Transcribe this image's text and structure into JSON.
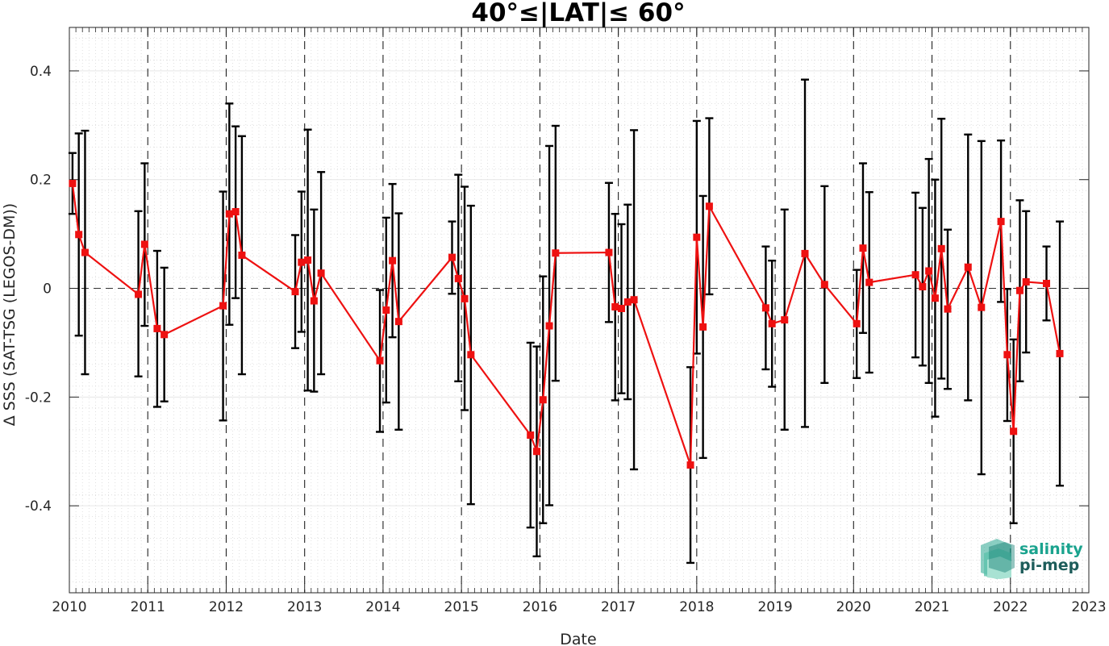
{
  "chart_data": {
    "type": "line",
    "title": "40°≤|LAT|≤ 60°",
    "xlabel": "Date",
    "ylabel": "Δ SSS (SAT-TSG (LEGOS-DM))",
    "xlim": [
      2010,
      2023
    ],
    "ylim": [
      -0.56,
      0.48
    ],
    "x_ticks": [
      "2010",
      "2011",
      "2012",
      "2013",
      "2014",
      "2015",
      "2016",
      "2017",
      "2018",
      "2019",
      "2020",
      "2021",
      "2022",
      "2023"
    ],
    "y_ticks": [
      "-0.4",
      "-0.2",
      "0",
      "0.2",
      "0.4"
    ],
    "grid": true,
    "minor_grid": true,
    "year_separators": "dashed",
    "zero_line": "dashed",
    "series": [
      {
        "color": "#ee1111",
        "marker": "square",
        "error_bar_color": "#000000",
        "points": [
          {
            "x": 2010.04,
            "y": 0.193,
            "lo": 0.137,
            "hi": 0.249
          },
          {
            "x": 2010.12,
            "y": 0.099,
            "lo": -0.087,
            "hi": 0.285
          },
          {
            "x": 2010.2,
            "y": 0.066,
            "lo": -0.158,
            "hi": 0.29
          },
          {
            "x": 2010.88,
            "y": -0.011,
            "lo": -0.162,
            "hi": 0.142
          },
          {
            "x": 2010.96,
            "y": 0.081,
            "lo": -0.069,
            "hi": 0.23
          },
          {
            "x": 2011.12,
            "y": -0.074,
            "lo": -0.218,
            "hi": 0.069
          },
          {
            "x": 2011.21,
            "y": -0.085,
            "lo": -0.208,
            "hi": 0.038
          },
          {
            "x": 2011.96,
            "y": -0.032,
            "lo": -0.243,
            "hi": 0.178
          },
          {
            "x": 2012.04,
            "y": 0.137,
            "lo": -0.067,
            "hi": 0.34
          },
          {
            "x": 2012.12,
            "y": 0.141,
            "lo": -0.018,
            "hi": 0.298
          },
          {
            "x": 2012.2,
            "y": 0.061,
            "lo": -0.158,
            "hi": 0.28
          },
          {
            "x": 2012.88,
            "y": -0.006,
            "lo": -0.11,
            "hi": 0.098
          },
          {
            "x": 2012.96,
            "y": 0.048,
            "lo": -0.08,
            "hi": 0.178
          },
          {
            "x": 2013.04,
            "y": 0.052,
            "lo": -0.188,
            "hi": 0.292
          },
          {
            "x": 2013.12,
            "y": -0.023,
            "lo": -0.19,
            "hi": 0.145
          },
          {
            "x": 2013.21,
            "y": 0.028,
            "lo": -0.158,
            "hi": 0.214
          },
          {
            "x": 2013.96,
            "y": -0.133,
            "lo": -0.264,
            "hi": -0.003
          },
          {
            "x": 2014.04,
            "y": -0.04,
            "lo": -0.21,
            "hi": 0.13
          },
          {
            "x": 2014.12,
            "y": 0.051,
            "lo": -0.09,
            "hi": 0.192
          },
          {
            "x": 2014.2,
            "y": -0.061,
            "lo": -0.26,
            "hi": 0.138
          },
          {
            "x": 2014.88,
            "y": 0.057,
            "lo": -0.01,
            "hi": 0.123
          },
          {
            "x": 2014.96,
            "y": 0.018,
            "lo": -0.171,
            "hi": 0.209
          },
          {
            "x": 2015.04,
            "y": -0.019,
            "lo": -0.224,
            "hi": 0.187
          },
          {
            "x": 2015.12,
            "y": -0.122,
            "lo": -0.397,
            "hi": 0.152
          },
          {
            "x": 2015.88,
            "y": -0.27,
            "lo": -0.44,
            "hi": -0.1
          },
          {
            "x": 2015.96,
            "y": -0.3,
            "lo": -0.493,
            "hi": -0.107
          },
          {
            "x": 2016.04,
            "y": -0.205,
            "lo": -0.432,
            "hi": 0.022
          },
          {
            "x": 2016.12,
            "y": -0.069,
            "lo": -0.399,
            "hi": 0.262
          },
          {
            "x": 2016.2,
            "y": 0.065,
            "lo": -0.17,
            "hi": 0.299
          },
          {
            "x": 2016.88,
            "y": 0.066,
            "lo": -0.062,
            "hi": 0.194
          },
          {
            "x": 2016.96,
            "y": -0.034,
            "lo": -0.206,
            "hi": 0.137
          },
          {
            "x": 2017.04,
            "y": -0.037,
            "lo": -0.193,
            "hi": 0.118
          },
          {
            "x": 2017.12,
            "y": -0.025,
            "lo": -0.204,
            "hi": 0.154
          },
          {
            "x": 2017.2,
            "y": -0.021,
            "lo": -0.333,
            "hi": 0.291
          },
          {
            "x": 2017.92,
            "y": -0.325,
            "lo": -0.505,
            "hi": -0.145
          },
          {
            "x": 2018.0,
            "y": 0.094,
            "lo": -0.12,
            "hi": 0.308
          },
          {
            "x": 2018.08,
            "y": -0.071,
            "lo": -0.312,
            "hi": 0.17
          },
          {
            "x": 2018.16,
            "y": 0.151,
            "lo": -0.011,
            "hi": 0.313
          },
          {
            "x": 2018.88,
            "y": -0.036,
            "lo": -0.149,
            "hi": 0.077
          },
          {
            "x": 2018.96,
            "y": -0.065,
            "lo": -0.181,
            "hi": 0.051
          },
          {
            "x": 2019.12,
            "y": -0.058,
            "lo": -0.26,
            "hi": 0.145
          },
          {
            "x": 2019.38,
            "y": 0.064,
            "lo": -0.255,
            "hi": 0.384
          },
          {
            "x": 2019.63,
            "y": 0.007,
            "lo": -0.174,
            "hi": 0.188
          },
          {
            "x": 2020.04,
            "y": -0.065,
            "lo": -0.165,
            "hi": 0.034
          },
          {
            "x": 2020.12,
            "y": 0.074,
            "lo": -0.082,
            "hi": 0.23
          },
          {
            "x": 2020.2,
            "y": 0.011,
            "lo": -0.155,
            "hi": 0.177
          },
          {
            "x": 2020.79,
            "y": 0.025,
            "lo": -0.127,
            "hi": 0.176
          },
          {
            "x": 2020.88,
            "y": 0.003,
            "lo": -0.142,
            "hi": 0.148
          },
          {
            "x": 2020.96,
            "y": 0.032,
            "lo": -0.174,
            "hi": 0.238
          },
          {
            "x": 2021.04,
            "y": -0.018,
            "lo": -0.236,
            "hi": 0.2
          },
          {
            "x": 2021.12,
            "y": 0.073,
            "lo": -0.166,
            "hi": 0.312
          },
          {
            "x": 2021.2,
            "y": -0.038,
            "lo": -0.185,
            "hi": 0.108
          },
          {
            "x": 2021.46,
            "y": 0.039,
            "lo": -0.206,
            "hi": 0.283
          },
          {
            "x": 2021.63,
            "y": -0.035,
            "lo": -0.342,
            "hi": 0.271
          },
          {
            "x": 2021.88,
            "y": 0.123,
            "lo": -0.025,
            "hi": 0.272
          },
          {
            "x": 2021.96,
            "y": -0.122,
            "lo": -0.244,
            "hi": -0.001
          },
          {
            "x": 2022.04,
            "y": -0.263,
            "lo": -0.432,
            "hi": -0.094
          },
          {
            "x": 2022.12,
            "y": -0.004,
            "lo": -0.171,
            "hi": 0.162
          },
          {
            "x": 2022.2,
            "y": 0.012,
            "lo": -0.118,
            "hi": 0.142
          },
          {
            "x": 2022.46,
            "y": 0.009,
            "lo": -0.059,
            "hi": 0.077
          },
          {
            "x": 2022.63,
            "y": -0.12,
            "lo": -0.363,
            "hi": 0.123
          }
        ]
      }
    ]
  },
  "logo": {
    "line1": "salinity",
    "line2": "pi-mep",
    "color1": "#1aa38e",
    "color2": "#1d5c5a"
  }
}
